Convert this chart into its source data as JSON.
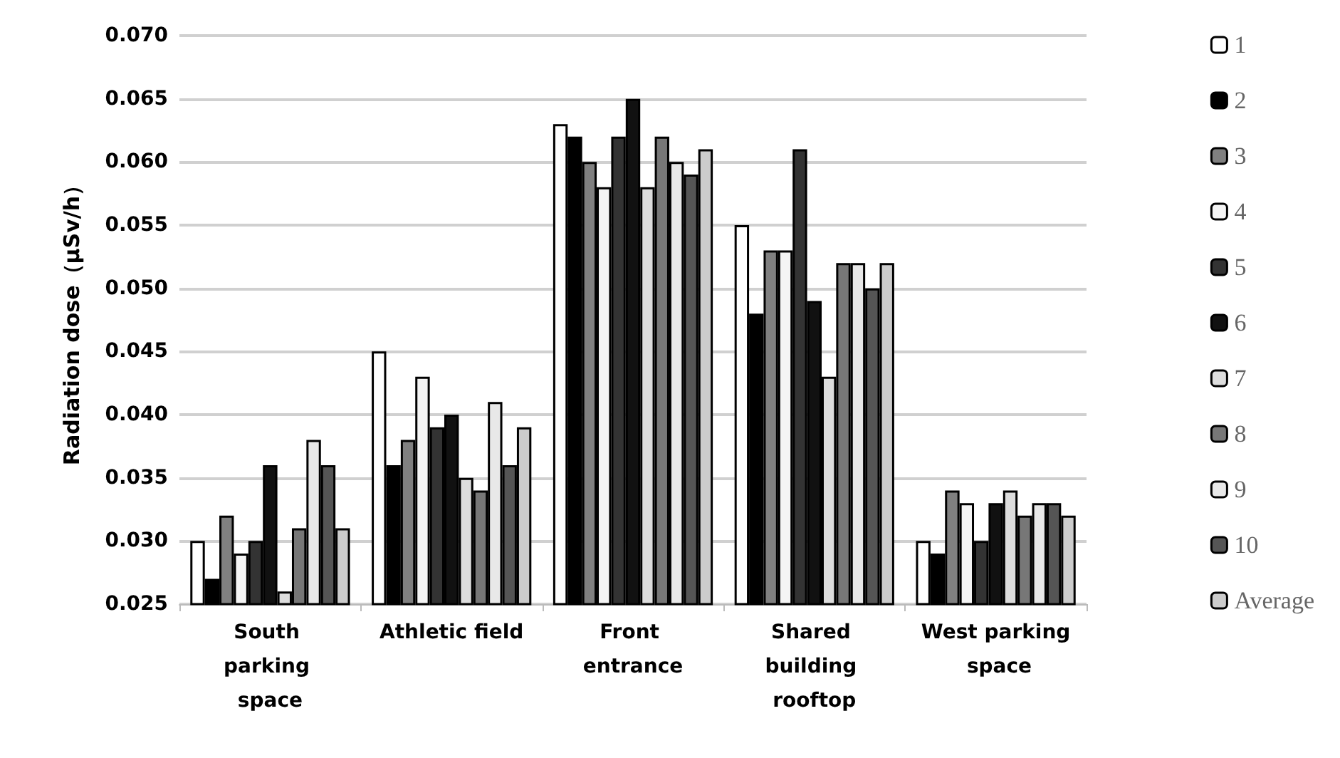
{
  "chart_data": {
    "type": "bar",
    "ylabel": "Radiation dose（μSv/h）",
    "categories": [
      "South parking space",
      "Athletic field",
      "Front entrance",
      "Shared building rooftop",
      "West parking space"
    ],
    "series": [
      {
        "name": "1",
        "color": "#ffffff",
        "values": [
          0.03,
          0.045,
          0.063,
          0.055,
          0.03
        ]
      },
      {
        "name": "2",
        "color": "#000000",
        "values": [
          0.027,
          0.036,
          0.062,
          0.048,
          0.029
        ]
      },
      {
        "name": "3",
        "color": "#808080",
        "values": [
          0.032,
          0.038,
          0.06,
          0.053,
          0.034
        ]
      },
      {
        "name": "4",
        "color": "#f4f4f4",
        "values": [
          0.029,
          0.043,
          0.058,
          0.053,
          0.033
        ]
      },
      {
        "name": "5",
        "color": "#333333",
        "values": [
          0.03,
          0.039,
          0.062,
          0.061,
          0.03
        ]
      },
      {
        "name": "6",
        "color": "#111111",
        "values": [
          0.036,
          0.04,
          0.065,
          0.049,
          0.033
        ]
      },
      {
        "name": "7",
        "color": "#dddddd",
        "values": [
          0.026,
          0.035,
          0.058,
          0.043,
          0.034
        ]
      },
      {
        "name": "8",
        "color": "#777777",
        "values": [
          0.031,
          0.034,
          0.062,
          0.052,
          0.032
        ]
      },
      {
        "name": "9",
        "color": "#e8e8e8",
        "values": [
          0.038,
          0.041,
          0.06,
          0.052,
          0.033
        ]
      },
      {
        "name": "10",
        "color": "#555555",
        "values": [
          0.036,
          0.036,
          0.059,
          0.05,
          0.033
        ]
      },
      {
        "name": "Average",
        "color": "#cccccc",
        "values": [
          0.031,
          0.039,
          0.061,
          0.052,
          0.032
        ]
      }
    ],
    "ylim": [
      0.025,
      0.07
    ],
    "yticks": [
      {
        "value": 0.025,
        "label": "0.025"
      },
      {
        "value": 0.03,
        "label": "0.030"
      },
      {
        "value": 0.035,
        "label": "0.035"
      },
      {
        "value": 0.04,
        "label": "0.040"
      },
      {
        "value": 0.045,
        "label": "0.045"
      },
      {
        "value": 0.05,
        "label": "0.050"
      },
      {
        "value": 0.055,
        "label": "0.055"
      },
      {
        "value": 0.06,
        "label": "0.060"
      },
      {
        "value": 0.065,
        "label": "0.065"
      },
      {
        "value": 0.07,
        "label": "0.070"
      }
    ],
    "grid": "y",
    "legend": "right"
  }
}
